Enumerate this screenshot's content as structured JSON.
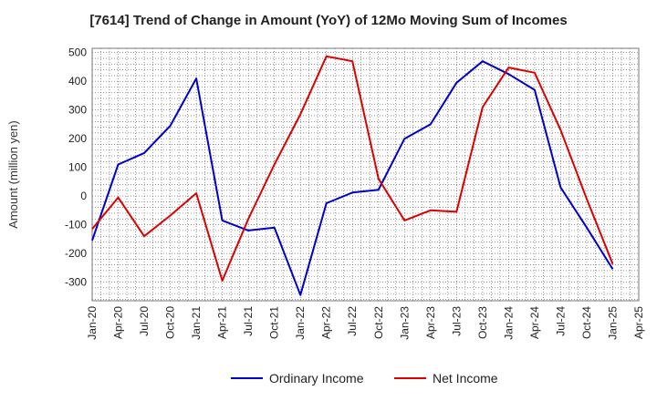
{
  "chart_data": {
    "type": "line",
    "title": "[7614]  Trend of Change in Amount (YoY) of 12Mo Moving Sum of Incomes",
    "ylabel": "Amount (million yen)",
    "xlabel": "",
    "ylim": [
      -365,
      515
    ],
    "yticks": [
      -300,
      -200,
      -100,
      0,
      100,
      200,
      300,
      400,
      500
    ],
    "x": [
      "Jan-20",
      "Apr-20",
      "Jul-20",
      "Oct-20",
      "Jan-21",
      "Apr-21",
      "Jul-21",
      "Oct-21",
      "Jan-22",
      "Apr-22",
      "Jul-22",
      "Oct-22",
      "Jan-23",
      "Apr-23",
      "Jul-23",
      "Oct-23",
      "Jan-24",
      "Apr-24",
      "Jul-24",
      "Oct-24",
      "Jan-25",
      "Apr-25"
    ],
    "grid": true,
    "legend_position": "bottom",
    "series": [
      {
        "name": "Ordinary Income",
        "color": "#0000cc",
        "values": [
          -155,
          110,
          150,
          245,
          410,
          -85,
          -120,
          -110,
          -345,
          -25,
          12,
          22,
          200,
          250,
          395,
          470,
          425,
          370,
          30,
          -110,
          -255,
          null
        ]
      },
      {
        "name": "Net Income",
        "color": "#dd0000",
        "values": [
          -115,
          -5,
          -140,
          -68,
          10,
          -295,
          -80,
          110,
          285,
          487,
          470,
          60,
          -85,
          -50,
          -55,
          310,
          448,
          430,
          230,
          -10,
          -237,
          null
        ]
      }
    ]
  }
}
